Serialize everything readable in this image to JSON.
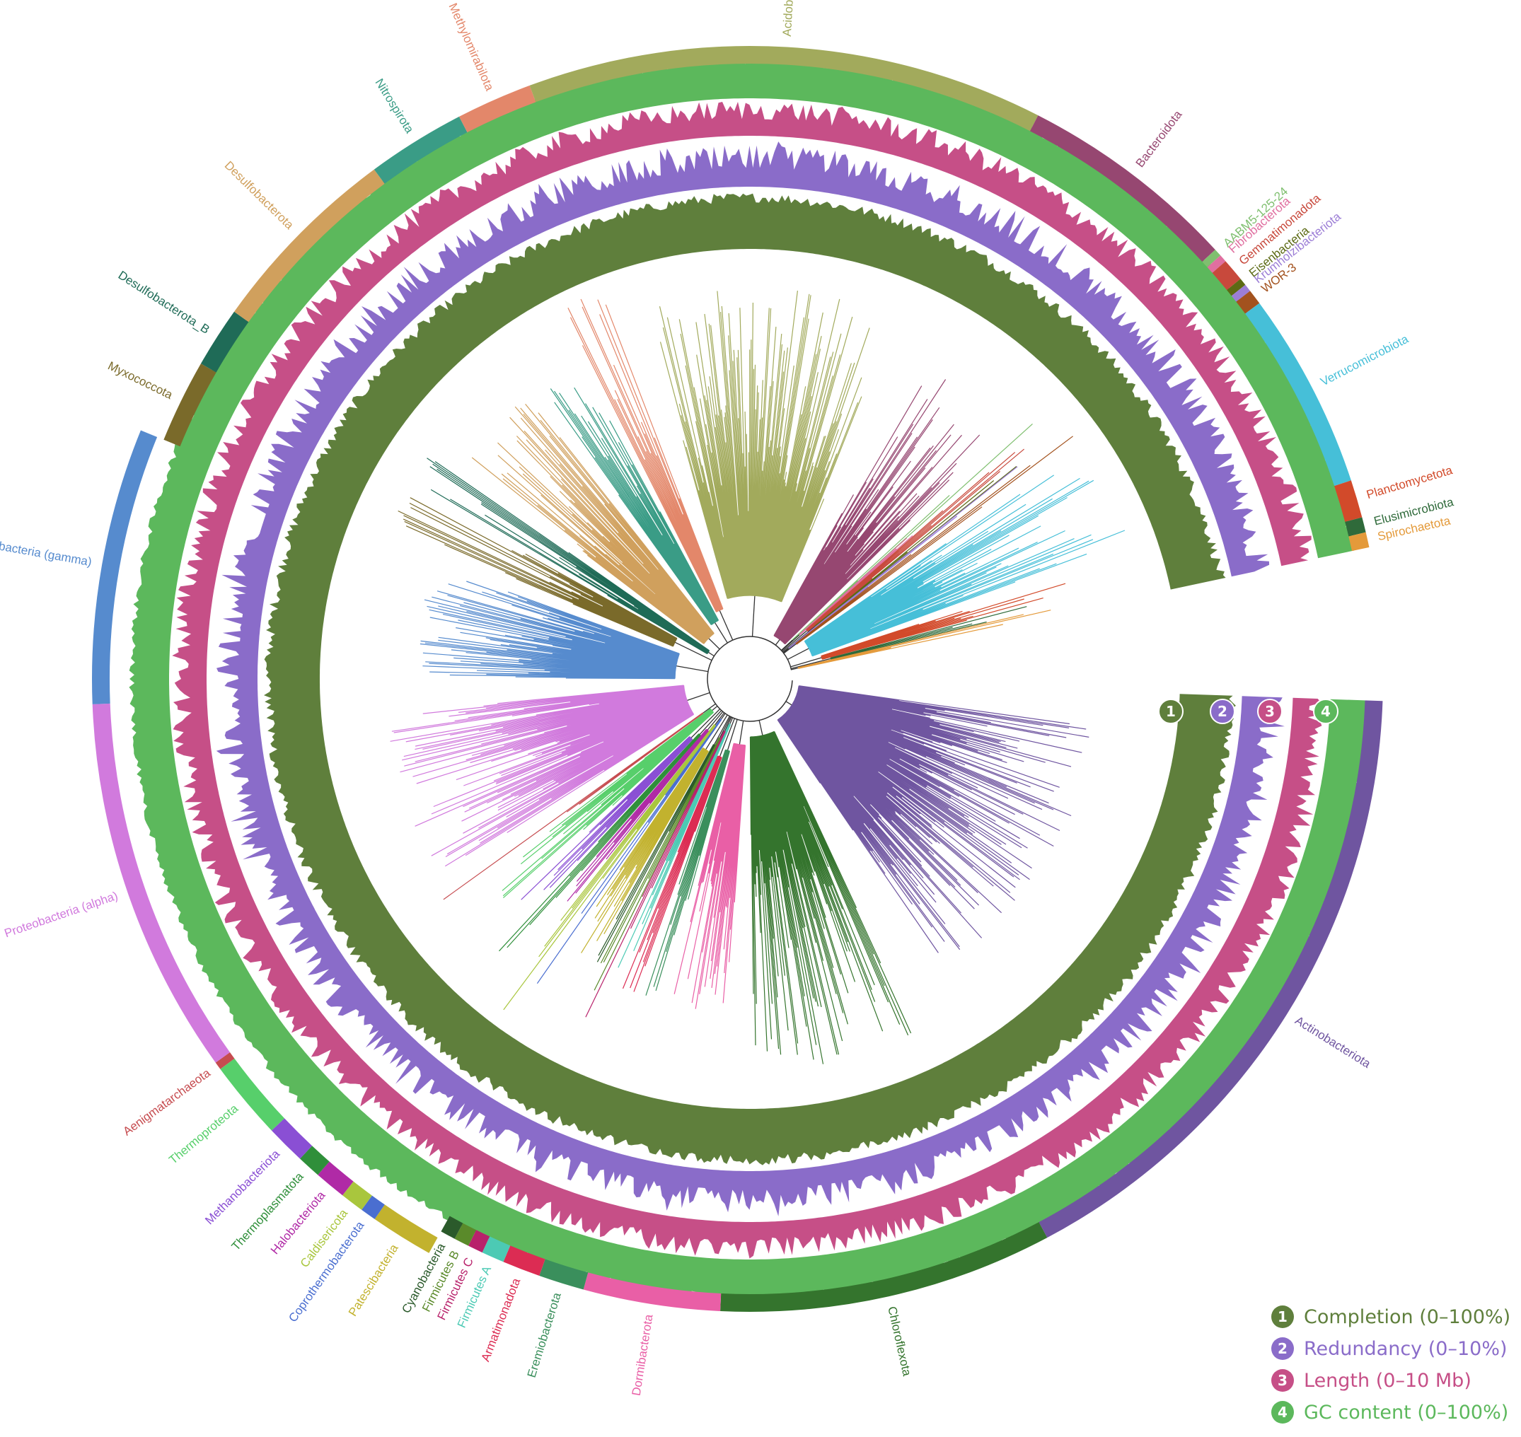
{
  "rings": [
    {
      "id": "1",
      "name": "Completion",
      "range": "(0–100%)",
      "color": "#5f7f3c"
    },
    {
      "id": "2",
      "name": "Redundancy",
      "range": "(0–10%)",
      "color": "#8a6cc9"
    },
    {
      "id": "3",
      "name": "Length",
      "range": "(0–10 Mb)",
      "color": "#c64f87"
    },
    {
      "id": "4",
      "name": "GC content",
      "range": "(0–100%)",
      "color": "#5cb85c"
    }
  ],
  "clades": [
    {
      "name": "Actinobacteriota",
      "color": "#6f55a0"
    },
    {
      "name": "Chloroflexota",
      "color": "#34742d"
    },
    {
      "name": "Dormibacterota",
      "color": "#e95fa6"
    },
    {
      "name": "Eremiobacterota",
      "color": "#3a8f5c"
    },
    {
      "name": "Armatimonadota",
      "color": "#dc2c53"
    },
    {
      "name": "Firmicutes A",
      "color": "#4ccab4"
    },
    {
      "name": "Firmicutes C",
      "color": "#b8226b"
    },
    {
      "name": "Firmicutes B",
      "color": "#5a8a2a"
    },
    {
      "name": "Cyanobacteria",
      "color": "#2b5a2b"
    },
    {
      "name": "Patescibacteria",
      "color": "#c2b22e"
    },
    {
      "name": "Coprothermobacterota",
      "color": "#4a6ed0"
    },
    {
      "name": "Caldisericota",
      "color": "#a9c63d"
    },
    {
      "name": "Halobacteriota",
      "color": "#b02aa6"
    },
    {
      "name": "Thermoplasmatota",
      "color": "#2f8f3a"
    },
    {
      "name": "Methanobacteriota",
      "color": "#8a4fd4"
    },
    {
      "name": "Thermoproteota",
      "color": "#57cf6b"
    },
    {
      "name": "Aenigmatarchaeota",
      "color": "#c64c50"
    },
    {
      "name": "Proteobacteria (alpha)",
      "color": "#d17add"
    },
    {
      "name": "Proteobacteria (gamma)",
      "color": "#568bce"
    },
    {
      "name": "Myxococcota",
      "color": "#7a6a2a"
    },
    {
      "name": "Desulfobacterota_B",
      "color": "#1f6b57"
    },
    {
      "name": "Desulfobacterota",
      "color": "#d0a05d"
    },
    {
      "name": "Nitrospirota",
      "color": "#3a9c86"
    },
    {
      "name": "Methylomirabilota",
      "color": "#e3876a"
    },
    {
      "name": "Acidobacteriota",
      "color": "#a2aa5c"
    },
    {
      "name": "Bacteroidota",
      "color": "#964771"
    },
    {
      "name": "AABM5-125-24",
      "color": "#7fbf6f"
    },
    {
      "name": "Fibrobacterota",
      "color": "#e06fa0"
    },
    {
      "name": "Gemmatimonadota",
      "color": "#c8493c"
    },
    {
      "name": "Eisenbacteria",
      "color": "#5c6a14"
    },
    {
      "name": "Krumholzibacteriota",
      "color": "#9c7ed6"
    },
    {
      "name": "WOR-3",
      "color": "#a3521e"
    },
    {
      "name": "Verrucomicrobiota",
      "color": "#46bfd8"
    },
    {
      "name": "Planctomycetota",
      "color": "#d24a2a"
    },
    {
      "name": "Elusimicrobiota",
      "color": "#2f6a3a"
    },
    {
      "name": "Spirochaetota",
      "color": "#e49a3a"
    }
  ]
}
